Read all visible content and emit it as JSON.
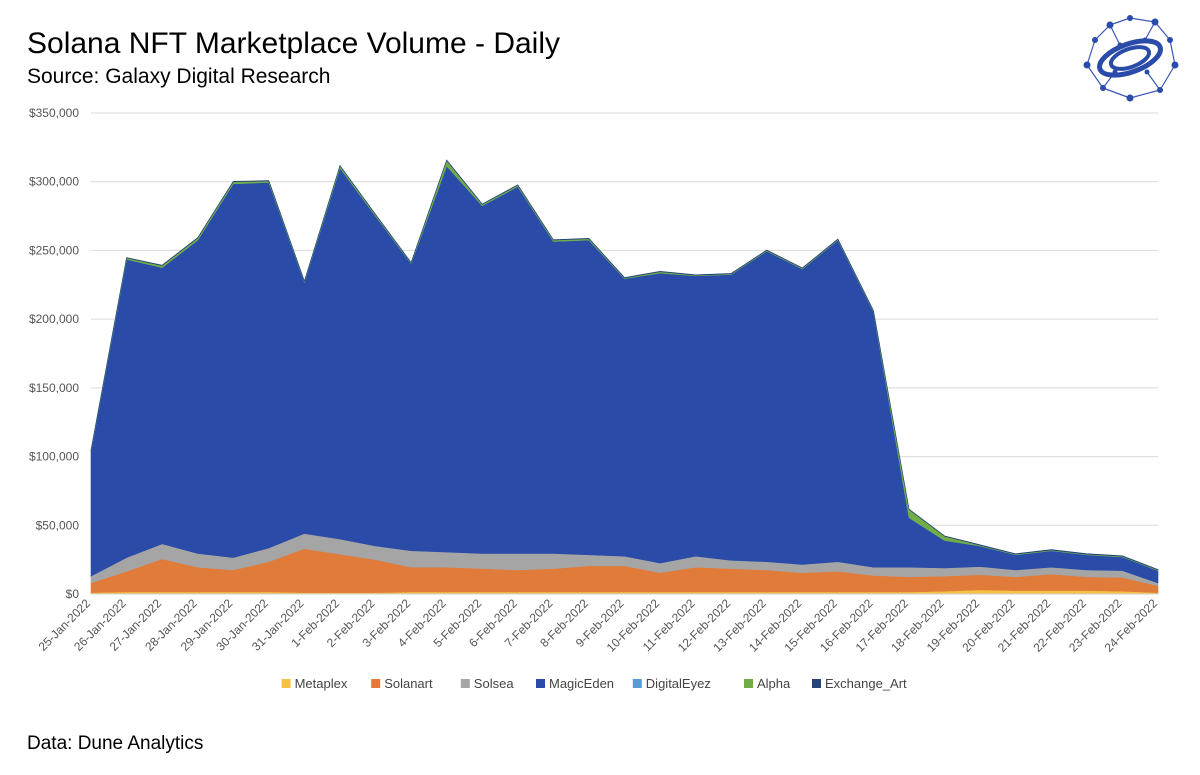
{
  "header": {
    "title": "Solana NFT Marketplace Volume - Daily",
    "subtitle": "Source: Galaxy Digital Research"
  },
  "footer": {
    "text": "Data: Dune Analytics"
  },
  "chart_data": {
    "type": "area",
    "stacked": true,
    "title": "Solana NFT Marketplace Volume - Daily",
    "subtitle": "Source: Galaxy Digital Research",
    "xlabel": "",
    "ylabel": "",
    "ylim": [
      0,
      350000
    ],
    "yticks": [
      0,
      50000,
      100000,
      150000,
      200000,
      250000,
      300000,
      350000
    ],
    "ytick_labels": [
      "$0",
      "$50,000",
      "$100,000",
      "$150,000",
      "$200,000",
      "$250,000",
      "$300,000",
      "$350,000"
    ],
    "grid": true,
    "legend_position": "bottom",
    "categories": [
      "25-Jan-2022",
      "26-Jan-2022",
      "27-Jan-2022",
      "28-Jan-2022",
      "29-Jan-2022",
      "30-Jan-2022",
      "31-Jan-2022",
      "1-Feb-2022",
      "2-Feb-2022",
      "3-Feb-2022",
      "4-Feb-2022",
      "5-Feb-2022",
      "6-Feb-2022",
      "7-Feb-2022",
      "8-Feb-2022",
      "9-Feb-2022",
      "10-Feb-2022",
      "11-Feb-2022",
      "12-Feb-2022",
      "13-Feb-2022",
      "14-Feb-2022",
      "15-Feb-2022",
      "16-Feb-2022",
      "17-Feb-2022",
      "18-Feb-2022",
      "19-Feb-2022",
      "20-Feb-2022",
      "21-Feb-2022",
      "22-Feb-2022",
      "23-Feb-2022",
      "24-Feb-2022"
    ],
    "series": [
      {
        "name": "Metaplex",
        "color": "#F5C242",
        "values": [
          1000,
          1500,
          1500,
          1500,
          1500,
          1500,
          1000,
          1000,
          1000,
          1500,
          1500,
          1500,
          1500,
          1500,
          1500,
          1500,
          1500,
          1500,
          1500,
          1500,
          1500,
          1500,
          1500,
          1500,
          2000,
          3000,
          2500,
          2500,
          2500,
          2000,
          1000
        ]
      },
      {
        "name": "Solanart",
        "color": "#E07B39",
        "values": [
          7000,
          15000,
          24000,
          18000,
          16000,
          22000,
          32000,
          28000,
          24000,
          18000,
          18000,
          17000,
          16000,
          17000,
          19000,
          19000,
          14000,
          18000,
          17000,
          16000,
          14000,
          15000,
          12000,
          11000,
          11000,
          11000,
          10000,
          12000,
          10000,
          10000,
          5000
        ]
      },
      {
        "name": "Solsea",
        "color": "#A5A5A5",
        "values": [
          5000,
          10000,
          11000,
          10000,
          9000,
          10000,
          11000,
          11000,
          10000,
          12000,
          11000,
          11000,
          12000,
          11000,
          8000,
          7000,
          7000,
          8000,
          6000,
          6000,
          6000,
          7000,
          6000,
          7000,
          6000,
          6000,
          5000,
          5000,
          5000,
          5000,
          2000
        ]
      },
      {
        "name": "MagicEden",
        "color": "#2A4BA8",
        "values": [
          91000,
          217000,
          201000,
          228000,
          272000,
          266000,
          183000,
          270000,
          240000,
          209000,
          281000,
          253000,
          267000,
          227000,
          229000,
          202000,
          211000,
          204000,
          208000,
          226000,
          215000,
          234000,
          186000,
          36000,
          20000,
          15000,
          11000,
          12000,
          11000,
          10000,
          9000
        ]
      },
      {
        "name": "DigitalEyez",
        "color": "#5B9BD5",
        "values": [
          0,
          0,
          0,
          0,
          0,
          0,
          0,
          0,
          0,
          0,
          0,
          0,
          0,
          0,
          0,
          0,
          0,
          0,
          0,
          0,
          0,
          0,
          0,
          0,
          0,
          0,
          0,
          0,
          0,
          0,
          0
        ]
      },
      {
        "name": "Alpha",
        "color": "#70AD47",
        "values": [
          500,
          1000,
          1500,
          1500,
          1500,
          1000,
          500,
          1500,
          1000,
          500,
          4000,
          1000,
          1000,
          1000,
          1000,
          500,
          1000,
          500,
          500,
          500,
          500,
          500,
          500,
          6000,
          3000,
          500,
          500,
          500,
          500,
          500,
          500
        ]
      },
      {
        "name": "Exchange_Art",
        "color": "#264478",
        "values": [
          300,
          300,
          300,
          300,
          300,
          300,
          300,
          300,
          300,
          300,
          300,
          300,
          300,
          300,
          300,
          300,
          300,
          300,
          300,
          300,
          300,
          300,
          300,
          300,
          300,
          300,
          300,
          300,
          300,
          300,
          300
        ]
      }
    ]
  }
}
